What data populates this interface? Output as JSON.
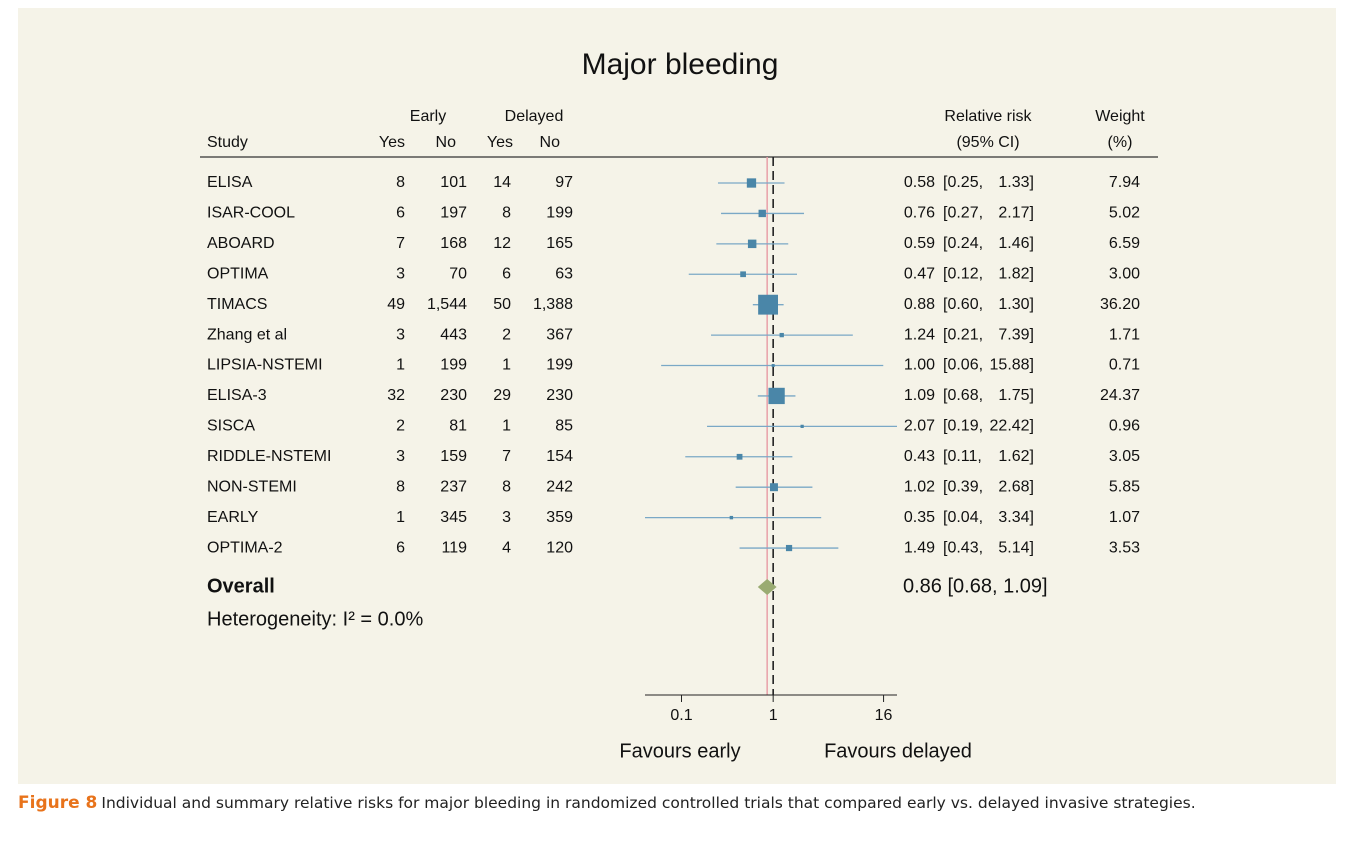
{
  "chart_data": {
    "type": "forest",
    "title": "Major bleeding",
    "group_headers": [
      "Early",
      "Delayed"
    ],
    "column_headers": [
      "Study",
      "Yes",
      "No",
      "Yes",
      "No"
    ],
    "rr_header": [
      "Relative risk",
      "(95% CI)"
    ],
    "weight_header": [
      "Weight",
      "(%)"
    ],
    "categories": [
      "ELISA",
      "ISAR-COOL",
      "ABOARD",
      "OPTIMA",
      "TIMACS",
      "Zhang et al",
      "LIPSIA-NSTEMI",
      "ELISA-3",
      "SISCA",
      "RIDDLE-NSTEMI",
      "NON-STEMI",
      "EARLY",
      "OPTIMA-2"
    ],
    "table_rows": [
      [
        "8",
        "101",
        "14",
        "97"
      ],
      [
        "6",
        "197",
        "8",
        "199"
      ],
      [
        "7",
        "168",
        "12",
        "165"
      ],
      [
        "3",
        "70",
        "6",
        "63"
      ],
      [
        "49",
        "1,544",
        "50",
        "1,388"
      ],
      [
        "3",
        "443",
        "2",
        "367"
      ],
      [
        "1",
        "199",
        "1",
        "199"
      ],
      [
        "32",
        "230",
        "29",
        "230"
      ],
      [
        "2",
        "81",
        "1",
        "85"
      ],
      [
        "3",
        "159",
        "7",
        "154"
      ],
      [
        "8",
        "237",
        "8",
        "242"
      ],
      [
        "1",
        "345",
        "3",
        "359"
      ],
      [
        "6",
        "119",
        "4",
        "120"
      ]
    ],
    "values": [
      0.58,
      0.76,
      0.59,
      0.47,
      0.88,
      1.24,
      1.0,
      1.09,
      2.07,
      0.43,
      1.02,
      0.35,
      1.49
    ],
    "value_labels": [
      "0.58",
      "0.76",
      "0.59",
      "0.47",
      "0.88",
      "1.24",
      "1.00",
      "1.09",
      "2.07",
      "0.43",
      "1.02",
      "0.35",
      "1.49"
    ],
    "ci_low": [
      0.25,
      0.27,
      0.24,
      0.12,
      0.6,
      0.21,
      0.06,
      0.68,
      0.19,
      0.11,
      0.39,
      0.04,
      0.43
    ],
    "ci_low_labels": [
      "[0.25,",
      "[0.27,",
      "[0.24,",
      "[0.12,",
      "[0.60,",
      "[0.21,",
      "[0.06,",
      "[0.68,",
      "[0.19,",
      "[0.11,",
      "[0.39,",
      "[0.04,",
      "[0.43,"
    ],
    "ci_high": [
      1.33,
      2.17,
      1.46,
      1.82,
      1.3,
      7.39,
      15.88,
      1.75,
      22.42,
      1.62,
      2.68,
      3.34,
      5.14
    ],
    "ci_high_labels": [
      "1.33]",
      "2.17]",
      "1.46]",
      "1.82]",
      "1.30]",
      "7.39]",
      "15.88]",
      "1.75]",
      "22.42]",
      "1.62]",
      "2.68]",
      "3.34]",
      "5.14]"
    ],
    "weights": [
      7.94,
      5.02,
      6.59,
      3.0,
      36.2,
      1.71,
      0.71,
      24.37,
      0.96,
      3.05,
      5.85,
      1.07,
      3.53
    ],
    "weight_labels": [
      "7.94",
      "5.02",
      "6.59",
      "3.00",
      "36.20",
      "1.71",
      "0.71",
      "24.37",
      "0.96",
      "3.05",
      "5.85",
      "1.07",
      "3.53"
    ],
    "overall": {
      "name": "Overall",
      "value": 0.86,
      "ci": [
        0.68,
        1.09
      ],
      "label": "0.86 [0.68, 1.09]",
      "color": "#9aab72"
    },
    "heterogeneity": "Heterogeneity: I² = 0.0%",
    "marker_color": "#4a86a8",
    "ci_color": "#7aa8c6",
    "null_line": 1,
    "log_x": true,
    "xlim": [
      0.04,
      22.42
    ],
    "xticks": [
      0.1,
      1,
      16
    ],
    "x_labels": [
      "Favours early",
      "Favours delayed"
    ]
  },
  "caption": {
    "label": "Figure 8",
    "text": "Individual and summary relative risks for major bleeding in randomized controlled trials that compared early vs. delayed invasive strategies."
  }
}
